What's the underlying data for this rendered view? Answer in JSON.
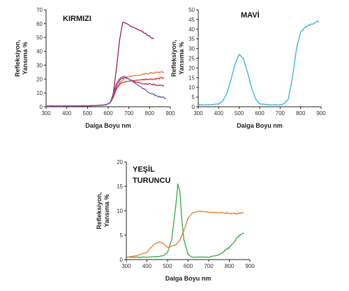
{
  "chart_data": [
    {
      "type": "line",
      "title": "KIRMIZI",
      "xlabel": "Dalga Boyu nm",
      "ylabel_lines": [
        "Refleksiyon,",
        "Yansıma %"
      ],
      "xlim": [
        300,
        900
      ],
      "ylim": [
        0,
        70
      ],
      "xticks": [
        "300",
        "400",
        "500",
        "600",
        "700",
        "800",
        "900"
      ],
      "yticks": [
        "0",
        "10",
        "20",
        "30",
        "40",
        "50",
        "60",
        "70"
      ],
      "series": [
        {
          "color": "#a01f3a",
          "x": [
            300,
            400,
            500,
            550,
            590,
            610,
            625,
            640,
            655,
            670,
            690,
            710,
            740,
            770,
            800,
            820
          ],
          "y": [
            0.5,
            0.6,
            0.7,
            0.9,
            1.5,
            3,
            10,
            28,
            48,
            61,
            60,
            58,
            56,
            54,
            51,
            49
          ]
        },
        {
          "color": "#e3772b",
          "x": [
            300,
            400,
            500,
            550,
            590,
            610,
            625,
            640,
            660,
            680,
            700,
            730,
            760,
            790,
            820,
            850,
            870
          ],
          "y": [
            0.5,
            0.6,
            0.7,
            0.9,
            1.5,
            3,
            7,
            13,
            18,
            21,
            22,
            22.5,
            23,
            24,
            24.5,
            25,
            25
          ]
        },
        {
          "color": "#d93030",
          "x": [
            300,
            400,
            500,
            550,
            590,
            610,
            625,
            640,
            660,
            680,
            700,
            730,
            760,
            790,
            820,
            850,
            870
          ],
          "y": [
            0.5,
            0.6,
            0.7,
            0.9,
            1.5,
            3,
            7,
            13,
            17,
            18,
            18.5,
            19,
            19.5,
            20,
            20,
            20.5,
            21
          ]
        },
        {
          "color": "#b52d70",
          "x": [
            300,
            400,
            500,
            550,
            590,
            610,
            625,
            640,
            660,
            680,
            700,
            730,
            760,
            790,
            820,
            850,
            870
          ],
          "y": [
            0.5,
            0.6,
            0.7,
            0.9,
            1.5,
            3,
            8,
            15,
            20,
            21,
            20,
            18,
            17,
            16.5,
            16,
            15.5,
            15
          ]
        },
        {
          "color": "#7a55b5",
          "x": [
            300,
            400,
            500,
            550,
            590,
            610,
            625,
            640,
            660,
            675,
            690,
            710,
            740,
            770,
            800,
            830,
            860,
            880
          ],
          "y": [
            0.5,
            0.6,
            0.7,
            0.9,
            1.5,
            3,
            9,
            17,
            21,
            22,
            21,
            19,
            16,
            13,
            10,
            8,
            7,
            6
          ]
        }
      ]
    },
    {
      "type": "line",
      "title": "MAVİ",
      "xlabel": "Dalga Boyu nm",
      "ylabel_lines": [
        "Refleksiyon,",
        "Yansıma %"
      ],
      "xlim": [
        300,
        900
      ],
      "ylim": [
        0,
        50
      ],
      "xticks": [
        "300",
        "400",
        "500",
        "600",
        "700",
        "800",
        "900"
      ],
      "yticks": [
        "0",
        "5",
        "10",
        "15",
        "20",
        "25",
        "30",
        "35",
        "40",
        "45",
        "50"
      ],
      "series": [
        {
          "color": "#35aee0",
          "x": [
            300,
            350,
            400,
            420,
            440,
            460,
            480,
            500,
            520,
            540,
            560,
            580,
            600,
            650,
            700,
            720,
            740,
            760,
            780,
            800,
            820,
            840,
            860,
            880,
            890
          ],
          "y": [
            1,
            1,
            1.5,
            3,
            7,
            14,
            22,
            27,
            25,
            18,
            10,
            4,
            1.5,
            1,
            1,
            1.5,
            4,
            15,
            30,
            38,
            41,
            42,
            43,
            44,
            44
          ]
        }
      ]
    },
    {
      "type": "line",
      "title": "",
      "legend_lines": [
        "YEŞİL",
        "TURUNCU"
      ],
      "xlabel": "Dalga Boyu nm",
      "ylabel_lines": [
        "Refleksiyon,",
        "Yansıma %"
      ],
      "xlim": [
        300,
        900
      ],
      "ylim": [
        0,
        20
      ],
      "xticks": [
        "300",
        "400",
        "500",
        "600",
        "700",
        "800",
        "900"
      ],
      "yticks": [
        "0",
        "5",
        "10",
        "15",
        "20"
      ],
      "series": [
        {
          "color": "#2fa84a",
          "x": [
            300,
            400,
            450,
            480,
            500,
            520,
            540,
            550,
            560,
            570,
            580,
            600,
            620,
            650,
            700,
            750,
            800,
            830,
            850,
            870
          ],
          "y": [
            0.5,
            0.5,
            0.6,
            0.8,
            1.5,
            4,
            11,
            15.5,
            14,
            8,
            4,
            1,
            0.5,
            0.5,
            0.5,
            1,
            2.5,
            4,
            5,
            5.5
          ]
        },
        {
          "color": "#ec7a2a",
          "x": [
            300,
            350,
            400,
            420,
            440,
            460,
            480,
            500,
            520,
            540,
            560,
            580,
            600,
            620,
            640,
            660,
            680,
            700,
            750,
            800,
            830,
            850,
            870
          ],
          "y": [
            0.5,
            0.8,
            1.5,
            2.5,
            3.3,
            3.6,
            3.3,
            2.5,
            2.8,
            3,
            4,
            6,
            8.5,
            9.5,
            9.8,
            9.9,
            9.8,
            9.7,
            9.6,
            9.5,
            9.4,
            9.5,
            9.6
          ]
        }
      ]
    }
  ]
}
